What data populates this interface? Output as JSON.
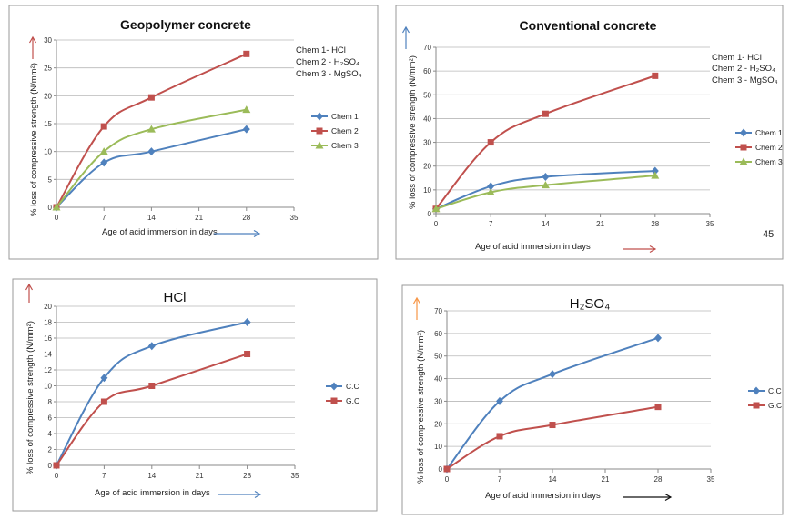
{
  "chart_data": [
    {
      "type": "line",
      "title": "Geopolymer concrete",
      "xlabel": "Age of acid immersion in days",
      "ylabel": "% loss of compressive strength (N/mm²)",
      "xlim": [
        0,
        35
      ],
      "ylim": [
        0,
        30
      ],
      "xticks": [
        "0",
        "7",
        "14",
        "21",
        "28",
        "35"
      ],
      "yticks": [
        "0",
        "5",
        "10",
        "15",
        "20",
        "25",
        "30"
      ],
      "grid": true,
      "legend_position": "right",
      "series": [
        {
          "name": "Chem 1",
          "x": [
            0,
            7,
            14,
            28
          ],
          "values": [
            0,
            8,
            10,
            14
          ],
          "color": "#4f81bd",
          "marker": "diamond"
        },
        {
          "name": "Chem 2",
          "x": [
            0,
            7,
            14,
            28
          ],
          "values": [
            0,
            14.5,
            19.7,
            27.5
          ],
          "color": "#c0504d",
          "marker": "square"
        },
        {
          "name": "Chem 3",
          "x": [
            0,
            7,
            14,
            28
          ],
          "values": [
            0,
            10,
            14,
            17.5
          ],
          "color": "#9bbb59",
          "marker": "triangle"
        }
      ],
      "notes": [
        "Chem 1- HCl",
        "Chem 2 - H₂SO₄",
        "Chem 3 - MgSO₄"
      ],
      "axis_arrows": {
        "y": "#c0504d",
        "x": "#4f81bd"
      }
    },
    {
      "type": "line",
      "title": "Conventional concrete",
      "xlabel": "Age of acid immersion in days",
      "ylabel": "% loss of compressive strength (N/mm²)",
      "xlim": [
        0,
        35
      ],
      "ylim": [
        0,
        70
      ],
      "xticks": [
        "0",
        "7",
        "14",
        "21",
        "28",
        "35"
      ],
      "yticks": [
        "0",
        "10",
        "20",
        "30",
        "40",
        "50",
        "60",
        "70"
      ],
      "grid": true,
      "legend_position": "right",
      "series": [
        {
          "name": "Chem 1",
          "x": [
            0,
            7,
            14,
            28
          ],
          "values": [
            2,
            11.5,
            15.5,
            18
          ],
          "color": "#4f81bd",
          "marker": "diamond"
        },
        {
          "name": "Chem 2",
          "x": [
            0,
            7,
            14,
            28
          ],
          "values": [
            2,
            30,
            42,
            58
          ],
          "color": "#c0504d",
          "marker": "square"
        },
        {
          "name": "Chem 3",
          "x": [
            0,
            7,
            14,
            28
          ],
          "values": [
            2,
            9,
            12,
            16
          ],
          "color": "#9bbb59",
          "marker": "triangle"
        }
      ],
      "notes": [
        "Chem 1- HCl",
        "Chem 2 - H₂SO₄",
        "Chem 3 - MgSO₄"
      ],
      "axis_arrows": {
        "y": "#4f81bd",
        "x": "#c0504d"
      }
    },
    {
      "type": "line",
      "title": "HCl",
      "xlabel": "Age of acid immersion in days",
      "ylabel": "% loss of compressive strength (N/mm²)",
      "xlim": [
        0,
        35
      ],
      "ylim": [
        0,
        20
      ],
      "xticks": [
        "0",
        "7",
        "14",
        "21",
        "28",
        "35"
      ],
      "yticks": [
        "0",
        "2",
        "4",
        "6",
        "8",
        "10",
        "12",
        "14",
        "16",
        "18",
        "20"
      ],
      "grid": true,
      "legend_position": "right",
      "series": [
        {
          "name": "C.C",
          "x": [
            0,
            7,
            14,
            28
          ],
          "values": [
            0,
            11,
            15,
            18
          ],
          "color": "#4f81bd",
          "marker": "diamond"
        },
        {
          "name": "G.C",
          "x": [
            0,
            7,
            14,
            28
          ],
          "values": [
            0,
            8,
            10,
            14
          ],
          "color": "#c0504d",
          "marker": "square"
        }
      ],
      "notes": [],
      "axis_arrows": {
        "y": "#c0504d",
        "x": "#4f81bd"
      }
    },
    {
      "type": "line",
      "title": "H₂SO₄",
      "xlabel": "Age of acid immersion in days",
      "ylabel": "% loss of compressive strength (N/mm²)",
      "xlim": [
        0,
        35
      ],
      "ylim": [
        0,
        70
      ],
      "xticks": [
        "0",
        "7",
        "14",
        "21",
        "28",
        "35"
      ],
      "yticks": [
        "0",
        "10",
        "20",
        "30",
        "40",
        "50",
        "60",
        "70"
      ],
      "grid": true,
      "legend_position": "right",
      "series": [
        {
          "name": "C.C",
          "x": [
            0,
            7,
            14,
            28
          ],
          "values": [
            0,
            30,
            42,
            58
          ],
          "color": "#4f81bd",
          "marker": "diamond"
        },
        {
          "name": "G.C",
          "x": [
            0,
            7,
            14,
            28
          ],
          "values": [
            0,
            14.5,
            19.5,
            27.5
          ],
          "color": "#c0504d",
          "marker": "square"
        }
      ],
      "notes": [],
      "axis_arrows": {
        "y": "#f79646",
        "x": "#111111"
      }
    }
  ],
  "page_number": "45"
}
